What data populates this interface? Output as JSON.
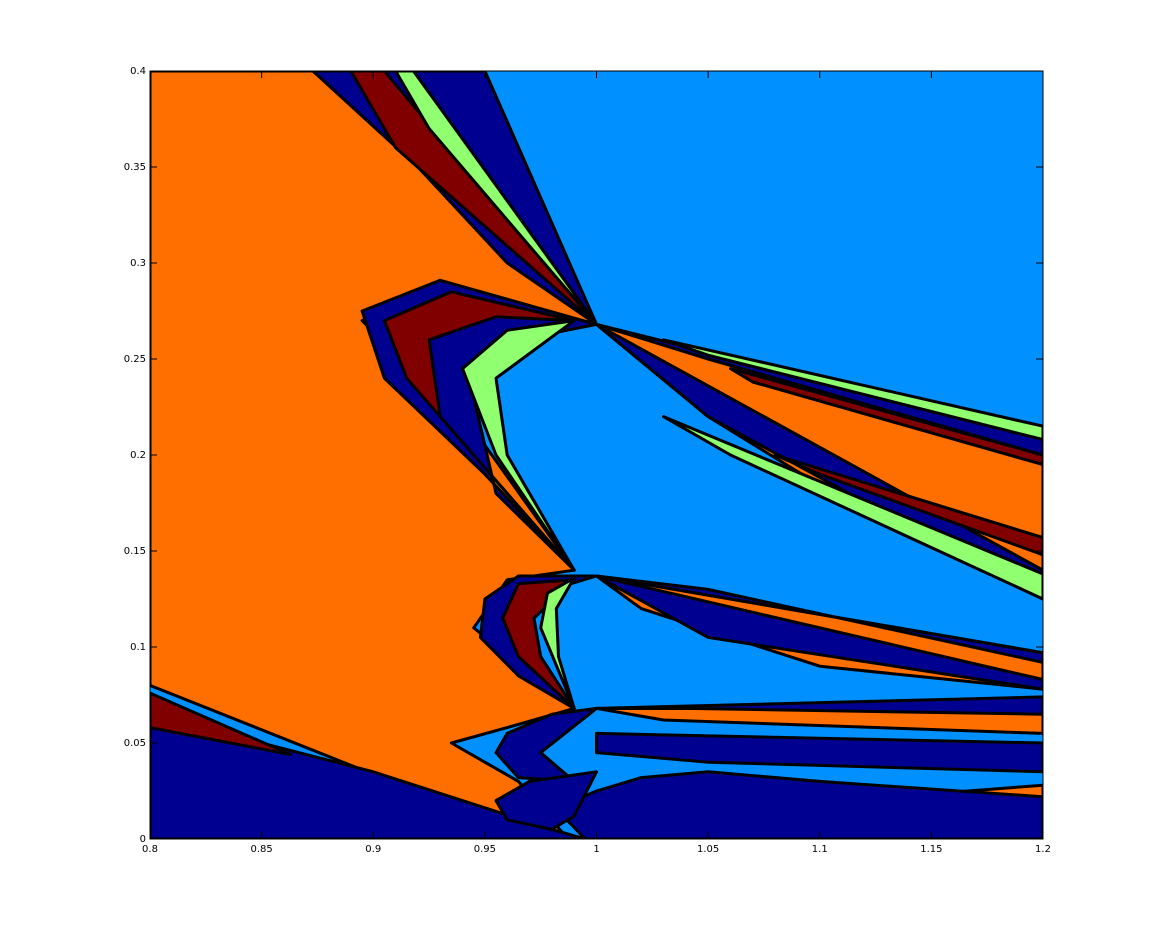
{
  "chart_data": {
    "type": "heatmap",
    "title": "",
    "xlabel": "",
    "ylabel": "",
    "xlim": [
      0.8,
      1.2
    ],
    "ylim": [
      0,
      0.4
    ],
    "x_ticks": [
      {
        "value": 0.8,
        "label": "0.8"
      },
      {
        "value": 0.85,
        "label": "0.85"
      },
      {
        "value": 0.9,
        "label": "0.9"
      },
      {
        "value": 0.95,
        "label": "0.95"
      },
      {
        "value": 1.0,
        "label": "1"
      },
      {
        "value": 1.05,
        "label": "1.05"
      },
      {
        "value": 1.1,
        "label": "1.1"
      },
      {
        "value": 1.15,
        "label": "1.15"
      },
      {
        "value": 1.2,
        "label": "1.2"
      }
    ],
    "y_ticks": [
      {
        "value": 0,
        "label": "0"
      },
      {
        "value": 0.05,
        "label": "0.05"
      },
      {
        "value": 0.1,
        "label": "0.1"
      },
      {
        "value": 0.15,
        "label": "0.15"
      },
      {
        "value": 0.2,
        "label": "0.2"
      },
      {
        "value": 0.25,
        "label": "0.25"
      },
      {
        "value": 0.3,
        "label": "0.3"
      },
      {
        "value": 0.35,
        "label": "0.35"
      },
      {
        "value": 0.4,
        "label": "0.4"
      }
    ],
    "grid": false,
    "legend": "none",
    "colors": {
      "light_blue": "#0090FF",
      "orange": "#FF6F00",
      "dark_red": "#800000",
      "navy": "#000090",
      "light_green": "#90FF70"
    },
    "regions": [
      {
        "name": "orange-main",
        "color": "orange",
        "points": [
          [
            0.8,
            0.4
          ],
          [
            0.873,
            0.4
          ],
          [
            0.92,
            0.35
          ],
          [
            1.0,
            0.268
          ],
          [
            0.93,
            0.29
          ],
          [
            0.895,
            0.27
          ],
          [
            0.95,
            0.205
          ],
          [
            0.99,
            0.14
          ],
          [
            0.96,
            0.135
          ],
          [
            0.945,
            0.11
          ],
          [
            0.99,
            0.068
          ],
          [
            0.96,
            0.058
          ],
          [
            0.935,
            0.05
          ],
          [
            0.965,
            0.03
          ],
          [
            0.985,
            0.003
          ],
          [
            0.96,
            0.006
          ],
          [
            0.8,
            0.08
          ]
        ]
      },
      {
        "name": "navy-top",
        "color": "navy",
        "points": [
          [
            0.873,
            0.4
          ],
          [
            0.95,
            0.4
          ],
          [
            1.0,
            0.268
          ],
          [
            0.96,
            0.3
          ],
          [
            0.92,
            0.35
          ]
        ]
      },
      {
        "name": "darkred-top",
        "color": "dark_red",
        "points": [
          [
            0.89,
            0.4
          ],
          [
            0.905,
            0.4
          ],
          [
            1.0,
            0.268
          ],
          [
            0.91,
            0.36
          ]
        ]
      },
      {
        "name": "green-top",
        "color": "light_green",
        "points": [
          [
            0.91,
            0.4
          ],
          [
            0.918,
            0.4
          ],
          [
            1.0,
            0.268
          ],
          [
            0.925,
            0.37
          ]
        ]
      },
      {
        "name": "navy-lobe-upper",
        "color": "navy",
        "points": [
          [
            1.0,
            0.268
          ],
          [
            0.93,
            0.291
          ],
          [
            0.895,
            0.275
          ],
          [
            0.905,
            0.24
          ],
          [
            0.95,
            0.19
          ],
          [
            0.99,
            0.14
          ],
          [
            0.955,
            0.18
          ],
          [
            0.945,
            0.23
          ],
          [
            0.965,
            0.26
          ]
        ]
      },
      {
        "name": "darkred-lobe-upper",
        "color": "dark_red",
        "points": [
          [
            0.99,
            0.27
          ],
          [
            0.935,
            0.285
          ],
          [
            0.905,
            0.27
          ],
          [
            0.915,
            0.24
          ],
          [
            0.96,
            0.18
          ],
          [
            0.99,
            0.14
          ],
          [
            0.93,
            0.22
          ],
          [
            0.925,
            0.26
          ],
          [
            0.955,
            0.272
          ]
        ]
      },
      {
        "name": "green-lobe-upper",
        "color": "light_green",
        "points": [
          [
            0.99,
            0.27
          ],
          [
            0.96,
            0.265
          ],
          [
            0.94,
            0.245
          ],
          [
            0.955,
            0.2
          ],
          [
            0.99,
            0.14
          ],
          [
            0.96,
            0.2
          ],
          [
            0.955,
            0.24
          ]
        ]
      },
      {
        "name": "navy-lobe-middle",
        "color": "navy",
        "points": [
          [
            1.0,
            0.137
          ],
          [
            0.965,
            0.137
          ],
          [
            0.95,
            0.125
          ],
          [
            0.948,
            0.105
          ],
          [
            0.965,
            0.085
          ],
          [
            0.99,
            0.068
          ],
          [
            0.97,
            0.09
          ],
          [
            0.968,
            0.115
          ],
          [
            0.98,
            0.13
          ]
        ]
      },
      {
        "name": "darkred-lobe-middle",
        "color": "dark_red",
        "points": [
          [
            0.99,
            0.135
          ],
          [
            0.965,
            0.133
          ],
          [
            0.958,
            0.115
          ],
          [
            0.965,
            0.095
          ],
          [
            0.99,
            0.068
          ],
          [
            0.975,
            0.095
          ],
          [
            0.972,
            0.115
          ]
        ]
      },
      {
        "name": "green-lobe-middle",
        "color": "light_green",
        "points": [
          [
            0.99,
            0.136
          ],
          [
            0.978,
            0.128
          ],
          [
            0.975,
            0.11
          ],
          [
            0.99,
            0.068
          ],
          [
            0.983,
            0.095
          ],
          [
            0.982,
            0.12
          ]
        ]
      },
      {
        "name": "navy-lobe-lower",
        "color": "navy",
        "points": [
          [
            1.0,
            0.068
          ],
          [
            0.98,
            0.065
          ],
          [
            0.96,
            0.055
          ],
          [
            0.955,
            0.045
          ],
          [
            0.965,
            0.032
          ],
          [
            0.99,
            0.03
          ],
          [
            0.975,
            0.045
          ]
        ]
      },
      {
        "name": "navy-bottom-left",
        "color": "navy",
        "points": [
          [
            0.8,
            0
          ],
          [
            0.995,
            0
          ],
          [
            0.98,
            0.005
          ],
          [
            0.9,
            0.035
          ],
          [
            0.8,
            0.065
          ]
        ]
      },
      {
        "name": "darkred-bottom-left",
        "color": "dark_red",
        "points": [
          [
            0.8,
            0.076
          ],
          [
            0.863,
            0.044
          ],
          [
            0.8,
            0.058
          ]
        ]
      },
      {
        "name": "orange-right-upper",
        "color": "orange",
        "points": [
          [
            1.0,
            0.268
          ],
          [
            1.2,
            0.21
          ],
          [
            1.2,
            0.125
          ],
          [
            1.12,
            0.17
          ],
          [
            1.05,
            0.22
          ]
        ]
      },
      {
        "name": "navy-right-upper-1",
        "color": "navy",
        "points": [
          [
            1.0,
            0.268
          ],
          [
            1.2,
            0.21
          ],
          [
            1.2,
            0.2
          ],
          [
            1.05,
            0.25
          ]
        ]
      },
      {
        "name": "green-right-upper",
        "color": "light_green",
        "points": [
          [
            1.03,
            0.26
          ],
          [
            1.2,
            0.215
          ],
          [
            1.2,
            0.208
          ],
          [
            1.05,
            0.252
          ]
        ]
      },
      {
        "name": "darkred-right-upper",
        "color": "dark_red",
        "points": [
          [
            1.06,
            0.245
          ],
          [
            1.2,
            0.2
          ],
          [
            1.2,
            0.195
          ],
          [
            1.07,
            0.238
          ]
        ]
      },
      {
        "name": "navy-right-upper-2",
        "color": "navy",
        "points": [
          [
            1.0,
            0.268
          ],
          [
            1.2,
            0.14
          ],
          [
            1.2,
            0.125
          ],
          [
            1.05,
            0.22
          ]
        ]
      },
      {
        "name": "darkred-right-upper-2",
        "color": "dark_red",
        "points": [
          [
            1.08,
            0.2
          ],
          [
            1.2,
            0.157
          ],
          [
            1.2,
            0.148
          ],
          [
            1.1,
            0.19
          ]
        ]
      },
      {
        "name": "green-right-upper-2",
        "color": "light_green",
        "points": [
          [
            1.03,
            0.22
          ],
          [
            1.2,
            0.138
          ],
          [
            1.2,
            0.125
          ],
          [
            1.06,
            0.2
          ]
        ]
      },
      {
        "name": "orange-right-middle",
        "color": "orange",
        "points": [
          [
            1.0,
            0.137
          ],
          [
            1.2,
            0.097
          ],
          [
            1.2,
            0.078
          ],
          [
            1.1,
            0.09
          ],
          [
            1.02,
            0.12
          ]
        ]
      },
      {
        "name": "navy-right-middle-1",
        "color": "navy",
        "points": [
          [
            1.0,
            0.137
          ],
          [
            1.2,
            0.097
          ],
          [
            1.2,
            0.092
          ],
          [
            1.05,
            0.13
          ]
        ]
      },
      {
        "name": "navy-right-middle-2",
        "color": "navy",
        "points": [
          [
            1.0,
            0.137
          ],
          [
            1.2,
            0.083
          ],
          [
            1.2,
            0.078
          ],
          [
            1.05,
            0.105
          ]
        ]
      },
      {
        "name": "orange-right-lower",
        "color": "orange",
        "points": [
          [
            1.0,
            0.068
          ],
          [
            1.2,
            0.068
          ],
          [
            1.2,
            0.055
          ],
          [
            1.03,
            0.062
          ]
        ]
      },
      {
        "name": "navy-right-lower-1",
        "color": "navy",
        "points": [
          [
            1.0,
            0.068
          ],
          [
            1.2,
            0.074
          ],
          [
            1.2,
            0.065
          ],
          [
            1.04,
            0.068
          ]
        ]
      },
      {
        "name": "navy-right-lower-2",
        "color": "navy",
        "points": [
          [
            1.0,
            0.055
          ],
          [
            1.2,
            0.05
          ],
          [
            1.2,
            0.035
          ],
          [
            1.05,
            0.04
          ],
          [
            1.0,
            0.045
          ]
        ]
      },
      {
        "name": "orange-right-bottom",
        "color": "orange",
        "points": [
          [
            1.02,
            0.012
          ],
          [
            1.2,
            0.028
          ],
          [
            1.2,
            0.018
          ],
          [
            1.06,
            0.008
          ]
        ]
      },
      {
        "name": "navy-bottom-right",
        "color": "navy",
        "points": [
          [
            0.995,
            0
          ],
          [
            1.2,
            0
          ],
          [
            1.2,
            0.022
          ],
          [
            1.1,
            0.03
          ],
          [
            1.05,
            0.035
          ],
          [
            1.02,
            0.032
          ],
          [
            1.0,
            0.025
          ],
          [
            0.99,
            0.02
          ],
          [
            0.985,
            0.012
          ]
        ]
      },
      {
        "name": "navy-lobe-bottom",
        "color": "navy",
        "points": [
          [
            1.0,
            0.035
          ],
          [
            0.97,
            0.03
          ],
          [
            0.955,
            0.02
          ],
          [
            0.96,
            0.01
          ],
          [
            0.98,
            0.005
          ],
          [
            0.99,
            0.012
          ]
        ]
      }
    ]
  }
}
